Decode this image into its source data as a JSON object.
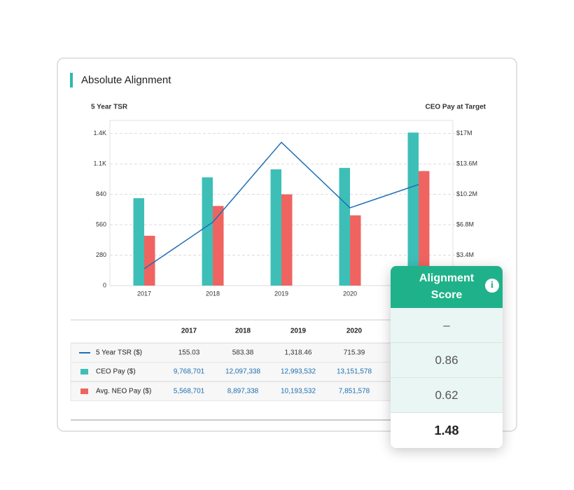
{
  "card": {
    "title": "Absolute Alignment"
  },
  "chart_data": {
    "type": "bar",
    "y_label": "5 Year TSR",
    "y2_label": "CEO Pay at Target",
    "categories": [
      "2017",
      "2018",
      "2019",
      "2020",
      null
    ],
    "series": [
      {
        "name": "5 Year TSR ($)",
        "type": "line",
        "color": "#1f6fb5",
        "values": [
          155.03,
          583.38,
          1318.46,
          715.39,
          930
        ]
      },
      {
        "name": "CEO Pay ($)",
        "type": "bar",
        "axis": "y2",
        "color": "#3dbfb8",
        "values": [
          9768701,
          12097338,
          12993532,
          13151578,
          17100000
        ]
      },
      {
        "name": "Avg. NEO Pay ($)",
        "type": "bar",
        "axis": "y2",
        "color": "#ef6461",
        "values": [
          5568701,
          8897338,
          10193532,
          7851578,
          12800000
        ]
      }
    ],
    "ylim": [
      0,
      1520
    ],
    "yticks": [
      0,
      280,
      560,
      840,
      {
        "value": 1120,
        "label": "1.1K"
      },
      {
        "value": 1400,
        "label": "1.4K"
      }
    ],
    "y2lim": [
      0,
      18460000
    ],
    "y2ticks": [
      {
        "value": 3400000,
        "label": "$3.4M"
      },
      {
        "value": 6800000,
        "label": "$6.8M"
      },
      {
        "value": 10200000,
        "label": "$10.2M"
      },
      {
        "value": 13600000,
        "label": "$13.6M"
      },
      {
        "value": 17000000,
        "label": "$17M"
      }
    ],
    "grid": true
  },
  "table": {
    "rows": [
      [
        "155.03",
        "583.38",
        "1,318.46",
        "715.39"
      ],
      [
        "9,768,701",
        "12,097,338",
        "12,993,532",
        "13,151,578"
      ],
      [
        "5,568,701",
        "8,897,338",
        "10,193,532",
        "7,851,578"
      ]
    ]
  },
  "alignment_score": {
    "title": "Alignment Score",
    "rows": [
      "–",
      "0.86",
      "0.62",
      "1.48"
    ]
  }
}
